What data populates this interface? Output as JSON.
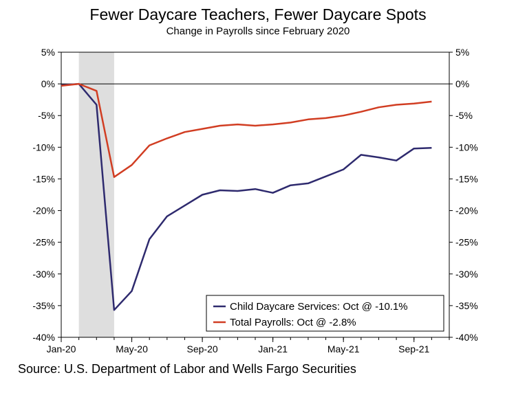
{
  "chart_data": {
    "type": "line",
    "title": "Fewer Daycare Teachers, Fewer Daycare Spots",
    "subtitle": "Change in Payrolls since February 2020",
    "source": "Source: U.S. Department of Labor and Wells Fargo Securities",
    "x": [
      "2020-01",
      "2020-02",
      "2020-03",
      "2020-04",
      "2020-05",
      "2020-06",
      "2020-07",
      "2020-08",
      "2020-09",
      "2020-10",
      "2020-11",
      "2020-12",
      "2021-01",
      "2021-02",
      "2021-03",
      "2021-04",
      "2021-05",
      "2021-06",
      "2021-07",
      "2021-08",
      "2021-09",
      "2021-10"
    ],
    "x_tick_labels": [
      "Jan-20",
      "May-20",
      "Sep-20",
      "Jan-21",
      "May-21",
      "Sep-21"
    ],
    "x_tick_positions": [
      "2020-01",
      "2020-05",
      "2020-09",
      "2021-01",
      "2021-05",
      "2021-09"
    ],
    "y_tick_labels": [
      "5%",
      "0%",
      "-5%",
      "-10%",
      "-15%",
      "-20%",
      "-25%",
      "-30%",
      "-35%",
      "-40%"
    ],
    "y_tick_values": [
      5,
      0,
      -5,
      -10,
      -15,
      -20,
      -25,
      -30,
      -35,
      -40
    ],
    "ylim": [
      -40,
      5
    ],
    "xlim": [
      "2020-01",
      "2021-11"
    ],
    "unit": "%",
    "recession_shading": [
      "2020-02",
      "2020-04"
    ],
    "reference_line": 0,
    "legend_position": "bottom-right",
    "series": [
      {
        "name": "Child Daycare Services: Oct @ -10.1%",
        "color": "#2e2a6e",
        "values": [
          -0.2,
          0.0,
          -3.3,
          -35.7,
          -32.7,
          -24.5,
          -20.9,
          -19.2,
          -17.5,
          -16.8,
          -16.9,
          -16.6,
          -17.2,
          -16.0,
          -15.7,
          -14.6,
          -13.5,
          -11.2,
          -11.6,
          -12.1,
          -10.2,
          -10.1
        ]
      },
      {
        "name": "Total Payrolls: Oct @ -2.8%",
        "color": "#d13d22",
        "values": [
          -0.3,
          0.0,
          -1.1,
          -14.7,
          -12.8,
          -9.7,
          -8.6,
          -7.6,
          -7.1,
          -6.6,
          -6.4,
          -6.6,
          -6.4,
          -6.1,
          -5.6,
          -5.4,
          -5.0,
          -4.4,
          -3.7,
          -3.3,
          -3.1,
          -2.8
        ]
      }
    ]
  }
}
